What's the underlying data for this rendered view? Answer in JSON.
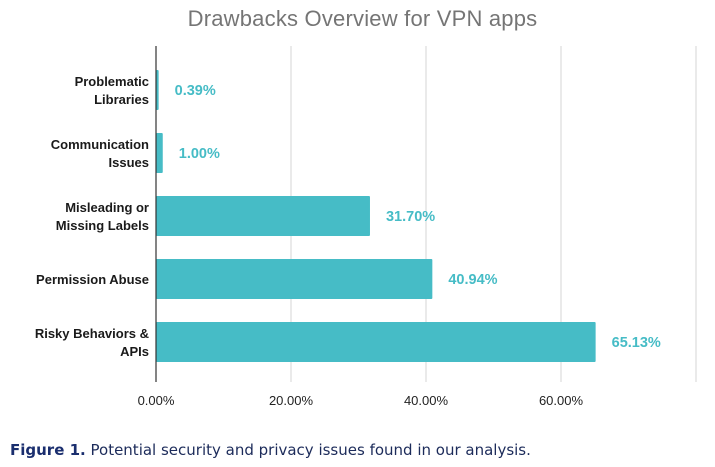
{
  "chart_data": {
    "type": "bar",
    "orientation": "horizontal",
    "title": "Drawbacks Overview for VPN apps",
    "categories": [
      [
        "Problematic",
        "Libraries"
      ],
      [
        "Communication",
        "Issues"
      ],
      [
        "Misleading or",
        "Missing Labels"
      ],
      [
        "Permission Abuse"
      ],
      [
        "Risky Behaviors &",
        "APIs"
      ]
    ],
    "values": [
      0.39,
      1.0,
      31.7,
      40.94,
      65.13
    ],
    "value_labels": [
      "0.39%",
      "1.00%",
      "31.70%",
      "40.94%",
      "65.13%"
    ],
    "xlim": [
      0,
      80
    ],
    "xticks": [
      0,
      20,
      40,
      60,
      80
    ],
    "xtick_labels": [
      "0.00%",
      "20.00%",
      "40.00%",
      "60.00%",
      ""
    ],
    "grid": true,
    "bar_color": "#46bcc6",
    "label_color": "#46bcc6",
    "title_color": "#757575"
  },
  "caption": {
    "label": "Figure 1.",
    "text": " Potential security and privacy issues found in our analysis."
  }
}
